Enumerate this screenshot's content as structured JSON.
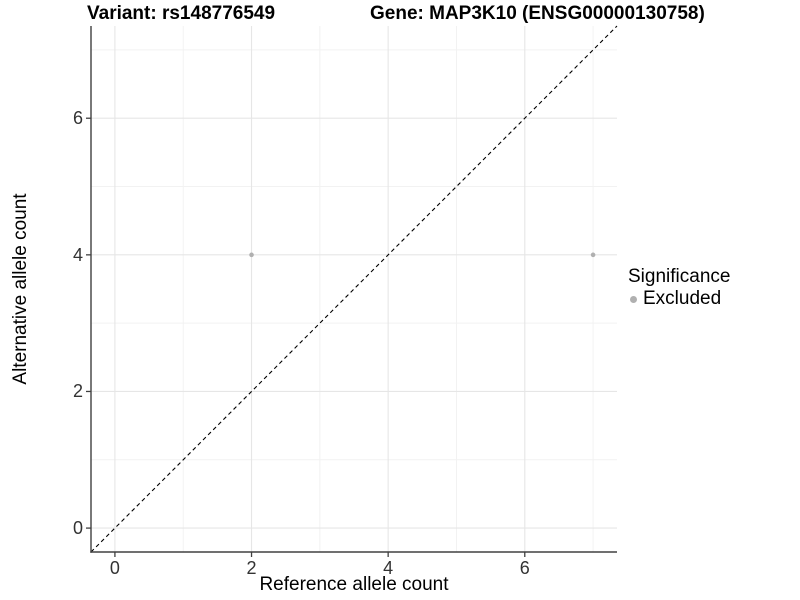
{
  "header": {
    "title_left": "Variant: rs148776549",
    "title_right": "Gene: MAP3K10 (ENSG00000130758)"
  },
  "chart_data": {
    "type": "scatter",
    "title_parts": {
      "left": "Variant: rs148776549",
      "right": "Gene: MAP3K10 (ENSG00000130758)"
    },
    "xlabel": "Reference allele count",
    "ylabel": "Alternative allele count",
    "xlim": [
      -0.35,
      7.35
    ],
    "ylim": [
      -0.35,
      7.35
    ],
    "x_ticks": [
      0,
      2,
      4,
      6
    ],
    "y_ticks": [
      0,
      2,
      4,
      6
    ],
    "x_minor_ticks": [
      1,
      3,
      5,
      7
    ],
    "y_minor_ticks": [
      1,
      3,
      5,
      7
    ],
    "grid": "major+minor",
    "identity_line": {
      "slope": 1,
      "intercept": 0,
      "style": "dashed",
      "color": "#000000"
    },
    "series": [
      {
        "name": "Excluded",
        "marker": "circle",
        "color": "#b0b0b0",
        "points": [
          [
            2,
            4
          ],
          [
            7,
            4
          ]
        ]
      }
    ],
    "legend": {
      "title": "Significance",
      "position": "right",
      "entries": [
        {
          "label": "Excluded",
          "color": "#b0b0b0",
          "marker": "circle"
        }
      ]
    }
  },
  "colors": {
    "background": "#ffffff",
    "axis_line": "#404040",
    "tick_mark": "#404040",
    "tick_label": "#333333",
    "grid_major": "#e6e6e6",
    "grid_minor": "#f2f2f2",
    "point": "#b0b0b0",
    "reference_line": "#000000",
    "text": "#000000"
  }
}
